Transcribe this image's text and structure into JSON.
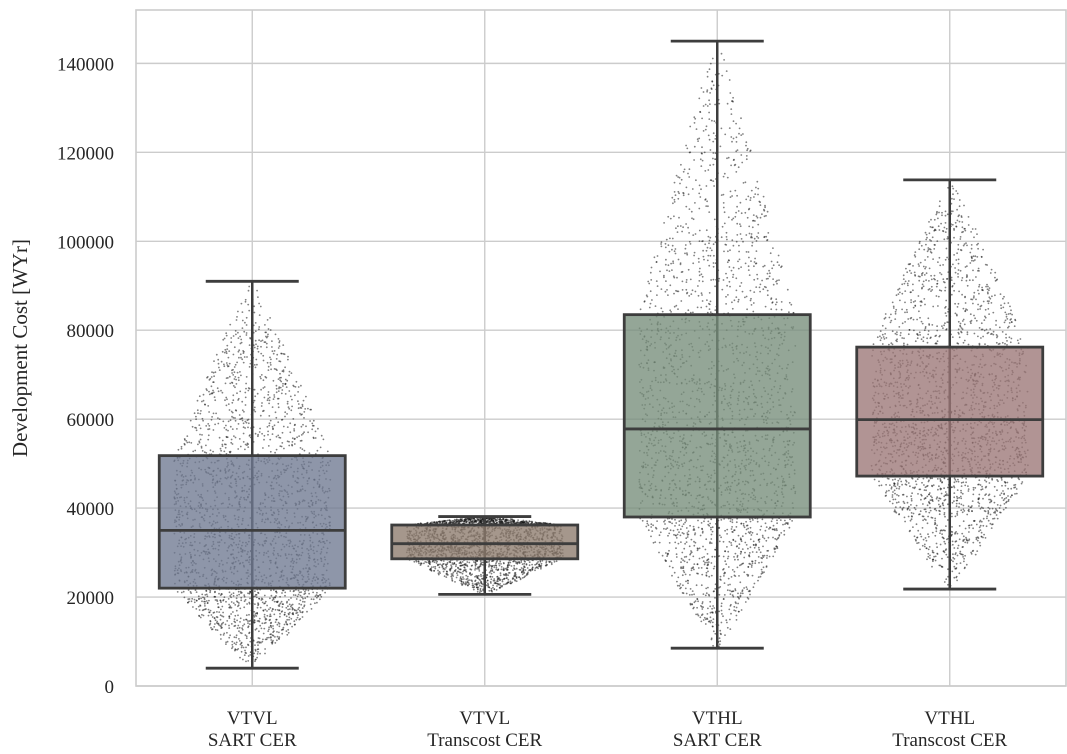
{
  "chart_data": {
    "type": "box",
    "ylabel": "Development Cost [WYr]",
    "xlabel": "",
    "ylim": [
      0,
      152000
    ],
    "yticks": [
      0,
      20000,
      40000,
      60000,
      80000,
      100000,
      120000,
      140000
    ],
    "grid": true,
    "overlay": "swarm",
    "categories": [
      {
        "line1": "VTVL",
        "line2": "SART CER",
        "color": "#6e7891"
      },
      {
        "line1": "VTVL",
        "line2": "Transcost CER",
        "color": "#8c7a6b"
      },
      {
        "line1": "VTHL",
        "line2": "SART CER",
        "color": "#768d7a"
      },
      {
        "line1": "VTHL",
        "line2": "Transcost CER",
        "color": "#9b7676"
      }
    ],
    "boxes": [
      {
        "whislo": 4000,
        "q1": 22000,
        "med": 35000,
        "q3": 51800,
        "whishi": 91000
      },
      {
        "whislo": 20600,
        "q1": 28600,
        "med": 32000,
        "q3": 36200,
        "whishi": 38100
      },
      {
        "whislo": 8500,
        "q1": 38000,
        "med": 57800,
        "q3": 83500,
        "whishi": 145000
      },
      {
        "whislo": 21800,
        "q1": 47200,
        "med": 59900,
        "q3": 76200,
        "whishi": 113800
      }
    ]
  }
}
